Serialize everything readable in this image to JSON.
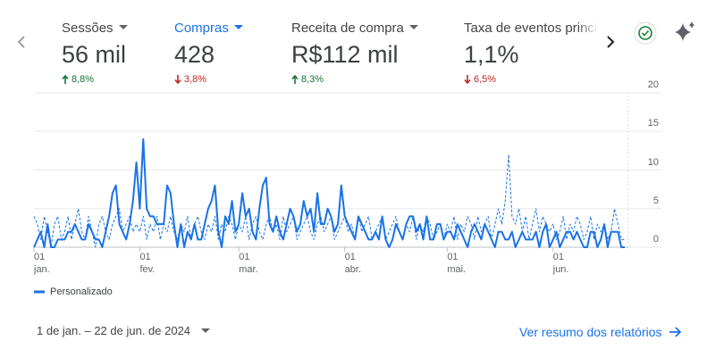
{
  "metrics": [
    {
      "title": "Sessões",
      "value": "56 mil",
      "change": "8,8%",
      "direction": "up",
      "selected": false
    },
    {
      "title": "Compras",
      "value": "428",
      "change": "3,8%",
      "direction": "down",
      "selected": true
    },
    {
      "title": "Receita de compra",
      "value": "R$112 mil",
      "change": "8,3%",
      "direction": "up",
      "selected": false
    },
    {
      "title": "Taxa de eventos princi",
      "value": "1,1%",
      "change": "6,5%",
      "direction": "down",
      "selected": false
    }
  ],
  "chart_data": {
    "type": "line",
    "categories": [
      "01\njan.",
      null,
      null,
      null,
      null,
      null,
      null,
      null,
      null,
      null,
      null,
      null,
      null,
      null,
      null,
      null,
      null,
      null,
      null,
      null,
      null,
      null,
      null,
      null,
      null,
      null,
      null,
      null,
      null,
      null,
      null,
      "01\nfev.",
      null,
      null,
      null,
      null,
      null,
      null,
      null,
      null,
      null,
      null,
      null,
      null,
      null,
      null,
      null,
      null,
      null,
      null,
      null,
      null,
      null,
      null,
      null,
      null,
      null,
      null,
      null,
      null,
      "01\nmar.",
      null,
      null,
      null,
      null,
      null,
      null,
      null,
      null,
      null,
      null,
      null,
      null,
      null,
      null,
      null,
      null,
      null,
      null,
      null,
      null,
      null,
      null,
      null,
      null,
      null,
      null,
      null,
      null,
      null,
      null,
      "01\nabr.",
      null,
      null,
      null,
      null,
      null,
      null,
      null,
      null,
      null,
      null,
      null,
      null,
      null,
      null,
      null,
      null,
      null,
      null,
      null,
      null,
      null,
      null,
      null,
      null,
      null,
      null,
      null,
      null,
      null,
      "01\nmai.",
      null,
      null,
      null,
      null,
      null,
      null,
      null,
      null,
      null,
      null,
      null,
      null,
      null,
      null,
      null,
      null,
      null,
      null,
      null,
      null,
      null,
      null,
      null,
      null,
      null,
      null,
      null,
      null,
      null,
      null,
      "01\njun.",
      null,
      null,
      null,
      null,
      null,
      null,
      null,
      null,
      null,
      null,
      null,
      null,
      null,
      null,
      null,
      null,
      null,
      null,
      null,
      null,
      null
    ],
    "series": [
      {
        "name": "Personalizado",
        "color": "#1a73e8",
        "dashed": false,
        "values": [
          0,
          1,
          2,
          0,
          3,
          0,
          0,
          1,
          1,
          1,
          2,
          2,
          3,
          2,
          1,
          1,
          3,
          2,
          1,
          1,
          0,
          2,
          4,
          7,
          8,
          3,
          2,
          1,
          3,
          6,
          11,
          5,
          14,
          5,
          4,
          4,
          3,
          3,
          3,
          8,
          7,
          3,
          0,
          3,
          0,
          2,
          1,
          3,
          1,
          1,
          3,
          5,
          6,
          8,
          2,
          0,
          4,
          3,
          6,
          2,
          3,
          7,
          4,
          5,
          2,
          1,
          5,
          8,
          9,
          3,
          2,
          4,
          2,
          1,
          3,
          5,
          4,
          2,
          3,
          6,
          4,
          5,
          2,
          7,
          3,
          3,
          5,
          4,
          2,
          3,
          8,
          4,
          3,
          2,
          1,
          4,
          3,
          2,
          1,
          1,
          2,
          1,
          4,
          1,
          0,
          1,
          3,
          2,
          1,
          3,
          4,
          4,
          2,
          3,
          1,
          4,
          1,
          1,
          3,
          3,
          1,
          2,
          2,
          1,
          3,
          2,
          1,
          0,
          2,
          3,
          2,
          1,
          3,
          2,
          1,
          0,
          2,
          2,
          1,
          1,
          2,
          0,
          1,
          2,
          1,
          1,
          1,
          2,
          0,
          2,
          3,
          0,
          1,
          2,
          0,
          1,
          2,
          2,
          1,
          2,
          1,
          0,
          0,
          2,
          2,
          0,
          1,
          3,
          0,
          2,
          2,
          2,
          0,
          0
        ]
      },
      {
        "color": "#1a73e8",
        "dashed": true,
        "values": [
          4,
          3,
          1,
          4,
          2,
          0,
          3,
          4,
          1,
          2,
          4,
          1,
          3,
          5,
          2,
          1,
          4,
          2,
          0,
          3,
          4,
          2,
          1,
          3,
          4,
          5,
          2,
          3,
          4,
          2,
          3,
          2,
          4,
          1,
          3,
          2,
          4,
          1,
          3,
          2,
          4,
          2,
          1,
          3,
          2,
          4,
          1,
          3,
          4,
          2,
          1,
          3,
          2,
          4,
          1,
          3,
          2,
          4,
          3,
          1,
          3,
          2,
          4,
          1,
          3,
          4,
          2,
          1,
          3,
          4,
          2,
          3,
          1,
          4,
          2,
          3,
          4,
          1,
          2,
          3,
          4,
          2,
          1,
          3,
          4,
          2,
          3,
          4,
          1,
          2,
          3,
          4,
          2,
          3,
          1,
          4,
          2,
          3,
          4,
          1,
          2,
          3,
          4,
          1,
          2,
          3,
          4,
          2,
          1,
          3,
          2,
          4,
          1,
          3,
          2,
          4,
          3,
          1,
          2,
          3,
          1,
          3,
          2,
          4,
          1,
          3,
          2,
          4,
          3,
          1,
          4,
          2,
          3,
          4,
          1,
          3,
          5,
          3,
          6,
          12,
          4,
          3,
          5,
          2,
          4,
          1,
          3,
          5,
          2,
          4,
          3,
          2,
          3,
          1,
          2,
          4,
          1,
          3,
          2,
          4,
          3,
          1,
          2,
          4,
          1,
          3,
          2,
          3,
          1,
          2,
          5,
          3,
          1,
          1
        ]
      }
    ],
    "ylim": [
      0,
      20
    ],
    "yticks": [
      0,
      5,
      10,
      15,
      20
    ],
    "grid": true,
    "y_axis_side": "right"
  },
  "footer": {
    "date_range": "1 de jan. – 22 de jun. de 2024",
    "link": "Ver resumo dos relatórios"
  }
}
